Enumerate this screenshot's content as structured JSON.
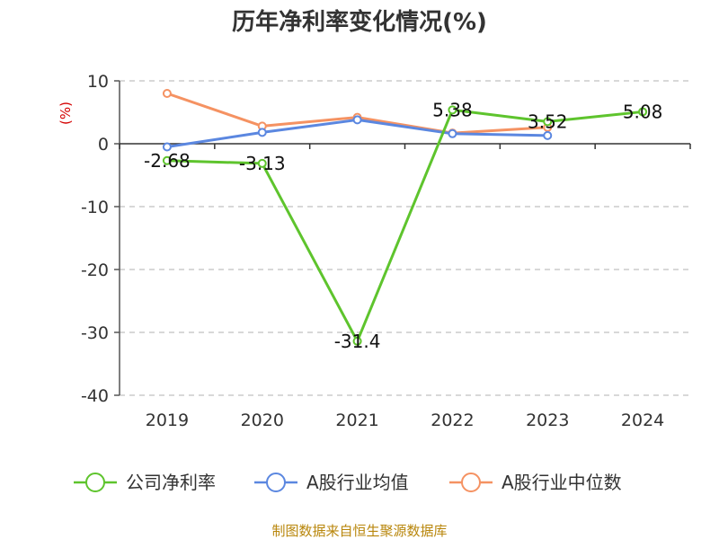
{
  "chart_data": {
    "type": "line",
    "title": "历年净利率变化情况(%)",
    "ylabel": "(%)",
    "xlabel": "",
    "categories": [
      "2019",
      "2020",
      "2021",
      "2022",
      "2023",
      "2024"
    ],
    "ylim": [
      -40,
      10
    ],
    "yticks": [
      10,
      0,
      -10,
      -20,
      -30,
      -40
    ],
    "grid": true,
    "legend_position": "bottom",
    "series": [
      {
        "name": "公司净利率",
        "values": [
          -2.68,
          -3.13,
          -31.4,
          5.38,
          3.52,
          5.08
        ],
        "color": "#5ec42d",
        "labels": [
          "-2.68",
          "-3.13",
          "-31.4",
          "5.38",
          "3.52",
          "5.08"
        ]
      },
      {
        "name": "A股行业均值",
        "values": [
          -0.5,
          1.8,
          3.8,
          1.6,
          1.3,
          null
        ],
        "color": "#5b87e0"
      },
      {
        "name": "A股行业中位数",
        "values": [
          8.0,
          2.8,
          4.2,
          1.7,
          2.6,
          null
        ],
        "color": "#f59262"
      }
    ]
  },
  "source": "制图数据来自恒生聚源数据库"
}
